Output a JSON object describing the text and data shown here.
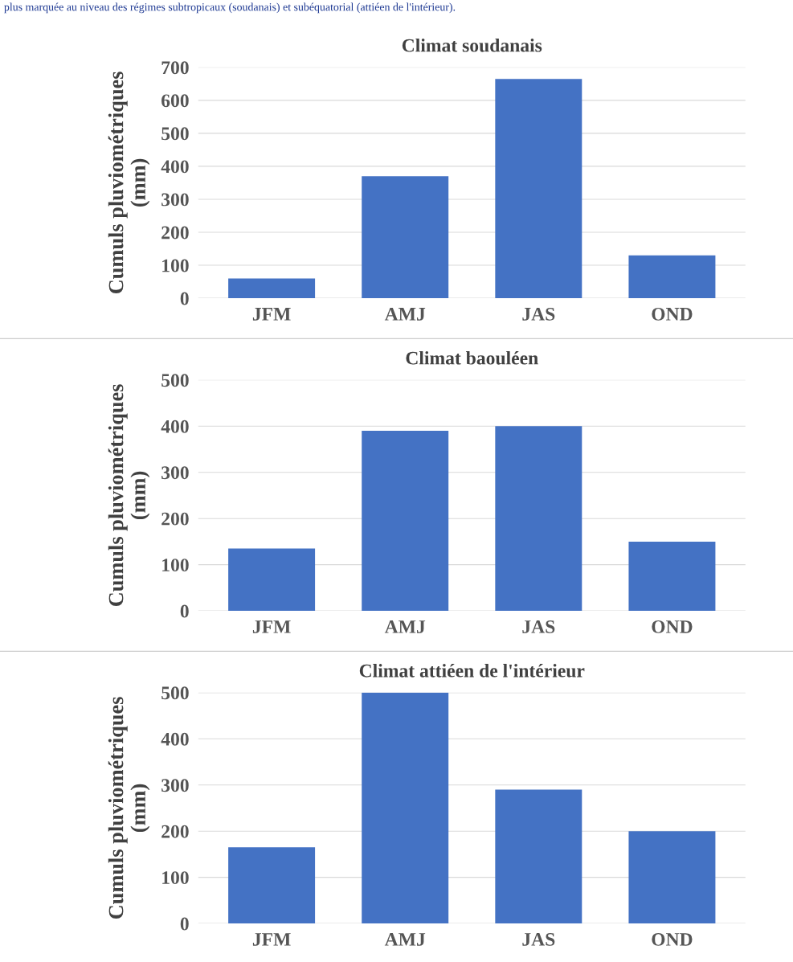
{
  "chart_data": [
    {
      "type": "bar",
      "title": "Climat soudanais",
      "ylabel": "Cumuls pluviométriques\n(mm)",
      "categories": [
        "JFM",
        "AMJ",
        "JAS",
        "OND"
      ],
      "values": [
        60,
        370,
        665,
        130
      ],
      "color": "#4472c4",
      "ylim": [
        0,
        700
      ],
      "yticks": [
        0,
        100,
        200,
        300,
        400,
        500,
        600,
        700
      ],
      "grid": "y",
      "annotations": [
        "plus marquée au niveau des régimes subtropicaux (soudanais) et subéquatorial (attiéen de l'intérieur)."
      ]
    },
    {
      "type": "bar",
      "title": "Climat baouléen",
      "ylabel": "Cumuls pluviométriques\n(mm)",
      "categories": [
        "JFM",
        "AMJ",
        "JAS",
        "OND"
      ],
      "values": [
        135,
        390,
        400,
        150
      ],
      "color": "#4472c4",
      "ylim": [
        0,
        500
      ],
      "yticks": [
        0,
        100,
        200,
        300,
        400,
        500
      ],
      "grid": "y"
    },
    {
      "type": "bar",
      "title": "Climat attiéen de l'intérieur",
      "ylabel": "Cumuls pluviométriques\n(mm)",
      "categories": [
        "JFM",
        "AMJ",
        "JAS",
        "OND"
      ],
      "values": [
        165,
        500,
        290,
        200
      ],
      "color": "#4472c4",
      "ylim": [
        0,
        500
      ],
      "yticks": [
        0,
        100,
        200,
        300,
        400,
        500
      ],
      "grid": "y"
    }
  ]
}
